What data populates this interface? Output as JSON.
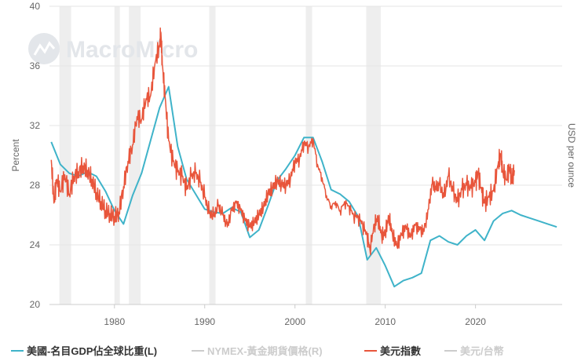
{
  "chart_data": {
    "type": "line",
    "watermark": "MacroMicro",
    "ylabel_left": "Percent",
    "ylabel_right": "USD per ounce",
    "ylim": [
      20,
      40
    ],
    "xlim": [
      1972.8,
      2029.6
    ],
    "y_ticks": [
      "20",
      "24",
      "28",
      "32",
      "36",
      "40"
    ],
    "x_ticks": [
      "1980",
      "1990",
      "2000",
      "2010",
      "2020"
    ],
    "recessions": [
      [
        1973.9,
        1975.2
      ],
      [
        1980.0,
        1980.6
      ],
      [
        1981.6,
        1982.9
      ],
      [
        1990.5,
        1991.2
      ],
      [
        2001.2,
        2001.9
      ],
      [
        2007.9,
        2009.5
      ]
    ],
    "series": [
      {
        "name": "美國-名目GDP佔全球比重(L)",
        "color": "#3fb3c9",
        "points": [
          [
            1973,
            30.9
          ],
          [
            1974,
            29.4
          ],
          [
            1975,
            28.8
          ],
          [
            1976,
            28.6
          ],
          [
            1977,
            28.9
          ],
          [
            1978,
            28.6
          ],
          [
            1979,
            27.6
          ],
          [
            1980,
            26.3
          ],
          [
            1981,
            25.4
          ],
          [
            1982,
            27.3
          ],
          [
            1983,
            28.8
          ],
          [
            1984,
            31.0
          ],
          [
            1985,
            33.2
          ],
          [
            1986,
            34.6
          ],
          [
            1987,
            30.6
          ],
          [
            1988,
            28.4
          ],
          [
            1989,
            27.4
          ],
          [
            1990,
            26.4
          ],
          [
            1991,
            26.2
          ],
          [
            1992,
            26.1
          ],
          [
            1993,
            26.5
          ],
          [
            1994,
            26.2
          ],
          [
            1995,
            24.5
          ],
          [
            1996,
            25.0
          ],
          [
            1997,
            26.6
          ],
          [
            1998,
            28.3
          ],
          [
            1999,
            29.1
          ],
          [
            2000,
            30.0
          ],
          [
            2001,
            31.2
          ],
          [
            2002,
            31.2
          ],
          [
            2003,
            29.6
          ],
          [
            2004,
            27.7
          ],
          [
            2005,
            27.4
          ],
          [
            2006,
            26.9
          ],
          [
            2007,
            25.9
          ],
          [
            2008,
            23.0
          ],
          [
            2009,
            23.8
          ],
          [
            2010,
            22.6
          ],
          [
            2011,
            21.2
          ],
          [
            2012,
            21.6
          ],
          [
            2013,
            21.8
          ],
          [
            2014,
            22.1
          ],
          [
            2015,
            24.3
          ],
          [
            2016,
            24.6
          ],
          [
            2017,
            24.2
          ],
          [
            2018,
            24.0
          ],
          [
            2019,
            24.6
          ],
          [
            2020,
            25.0
          ],
          [
            2021,
            24.3
          ],
          [
            2022,
            25.6
          ],
          [
            2023,
            26.1
          ],
          [
            2024,
            26.3
          ],
          [
            2025,
            26.0
          ],
          [
            2026,
            25.8
          ],
          [
            2027,
            25.6
          ],
          [
            2028,
            25.4
          ],
          [
            2029,
            25.2
          ]
        ]
      },
      {
        "name": "NYMEX-黃金期貨價格(R)",
        "color": "#cccccc",
        "hidden": true,
        "points": []
      },
      {
        "name": "美元指數",
        "color": "#e8553b",
        "points": [
          [
            1973.0,
            29.7
          ],
          [
            1973.3,
            26.8
          ],
          [
            1973.6,
            28.4
          ],
          [
            1974.0,
            27.6
          ],
          [
            1974.5,
            28.7
          ],
          [
            1975.0,
            27.4
          ],
          [
            1975.5,
            28.6
          ],
          [
            1976.0,
            28.9
          ],
          [
            1976.5,
            29.3
          ],
          [
            1977.0,
            29.0
          ],
          [
            1977.5,
            28.4
          ],
          [
            1978.0,
            27.5
          ],
          [
            1978.5,
            26.9
          ],
          [
            1979.0,
            26.3
          ],
          [
            1979.5,
            26.1
          ],
          [
            1980.0,
            25.9
          ],
          [
            1980.5,
            26.2
          ],
          [
            1981.0,
            27.9
          ],
          [
            1981.5,
            29.6
          ],
          [
            1982.0,
            30.7
          ],
          [
            1982.5,
            32.6
          ],
          [
            1983.0,
            32.4
          ],
          [
            1983.5,
            33.8
          ],
          [
            1984.0,
            34.0
          ],
          [
            1984.5,
            36.2
          ],
          [
            1985.0,
            37.4
          ],
          [
            1985.15,
            38.2
          ],
          [
            1985.3,
            36.1
          ],
          [
            1985.6,
            34.0
          ],
          [
            1986.0,
            31.0
          ],
          [
            1986.5,
            29.6
          ],
          [
            1987.0,
            28.9
          ],
          [
            1987.5,
            28.6
          ],
          [
            1988.0,
            27.7
          ],
          [
            1988.5,
            28.6
          ],
          [
            1989.0,
            28.8
          ],
          [
            1989.5,
            28.2
          ],
          [
            1990.0,
            27.2
          ],
          [
            1990.5,
            26.1
          ],
          [
            1991.0,
            25.9
          ],
          [
            1991.5,
            26.6
          ],
          [
            1992.0,
            26.0
          ],
          [
            1992.5,
            25.2
          ],
          [
            1993.0,
            26.3
          ],
          [
            1993.5,
            26.8
          ],
          [
            1994.0,
            26.3
          ],
          [
            1994.5,
            25.6
          ],
          [
            1995.0,
            25.2
          ],
          [
            1995.5,
            25.5
          ],
          [
            1996.0,
            26.0
          ],
          [
            1996.5,
            26.5
          ],
          [
            1997.0,
            27.4
          ],
          [
            1997.5,
            27.8
          ],
          [
            1998.0,
            28.3
          ],
          [
            1998.5,
            28.1
          ],
          [
            1999.0,
            28.0
          ],
          [
            1999.5,
            28.5
          ],
          [
            2000.0,
            29.6
          ],
          [
            2000.5,
            29.8
          ],
          [
            2001.0,
            30.9
          ],
          [
            2001.5,
            30.6
          ],
          [
            2002.0,
            31.1
          ],
          [
            2002.5,
            29.4
          ],
          [
            2003.0,
            28.5
          ],
          [
            2003.5,
            27.3
          ],
          [
            2004.0,
            26.6
          ],
          [
            2004.5,
            26.9
          ],
          [
            2005.0,
            26.3
          ],
          [
            2005.5,
            26.9
          ],
          [
            2006.0,
            26.6
          ],
          [
            2006.5,
            26.0
          ],
          [
            2007.0,
            25.9
          ],
          [
            2007.5,
            25.4
          ],
          [
            2008.0,
            24.6
          ],
          [
            2008.3,
            23.7
          ],
          [
            2008.8,
            25.4
          ],
          [
            2009.2,
            25.8
          ],
          [
            2009.6,
            24.6
          ],
          [
            2010.0,
            24.8
          ],
          [
            2010.4,
            25.9
          ],
          [
            2010.8,
            24.7
          ],
          [
            2011.3,
            23.9
          ],
          [
            2011.8,
            24.7
          ],
          [
            2012.3,
            25.2
          ],
          [
            2012.8,
            24.5
          ],
          [
            2013.3,
            25.3
          ],
          [
            2013.8,
            25.0
          ],
          [
            2014.3,
            24.9
          ],
          [
            2014.8,
            26.4
          ],
          [
            2015.2,
            28.1
          ],
          [
            2015.6,
            27.7
          ],
          [
            2016.0,
            28.0
          ],
          [
            2016.5,
            27.2
          ],
          [
            2017.0,
            28.6
          ],
          [
            2017.5,
            27.6
          ],
          [
            2018.0,
            26.9
          ],
          [
            2018.5,
            27.7
          ],
          [
            2019.0,
            28.0
          ],
          [
            2019.5,
            27.8
          ],
          [
            2020.0,
            28.2
          ],
          [
            2020.3,
            28.8
          ],
          [
            2020.7,
            27.5
          ],
          [
            2021.0,
            26.8
          ],
          [
            2021.5,
            27.2
          ],
          [
            2022.0,
            27.6
          ],
          [
            2022.5,
            29.4
          ],
          [
            2022.8,
            30.1
          ],
          [
            2023.0,
            29.0
          ],
          [
            2023.4,
            28.4
          ],
          [
            2023.8,
            29.2
          ],
          [
            2024.0,
            28.4
          ],
          [
            2024.3,
            29.0
          ]
        ]
      },
      {
        "name": "美元/台幣",
        "color": "#cccccc",
        "hidden": true,
        "points": []
      }
    ]
  }
}
